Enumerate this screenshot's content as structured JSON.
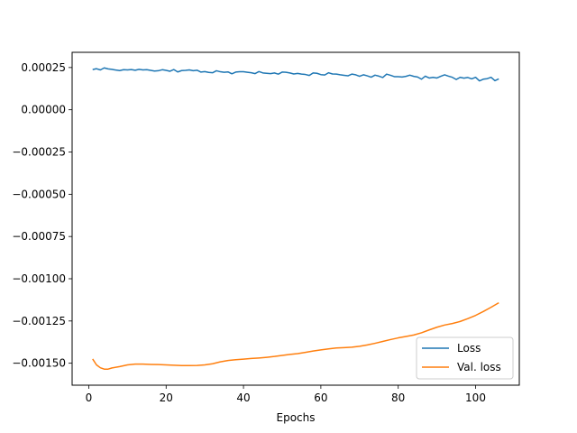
{
  "chart_data": {
    "type": "line",
    "title": "",
    "xlabel": "Epochs",
    "ylabel": "",
    "xlim": [
      -4.3,
      111.3
    ],
    "ylim": [
      -0.00163,
      0.00034
    ],
    "xticks": [
      0,
      20,
      40,
      60,
      80,
      100
    ],
    "yticks": [
      0.00025,
      0.0,
      -0.00025,
      -0.0005,
      -0.00075,
      -0.001,
      -0.00125,
      -0.0015
    ],
    "ytick_labels": [
      "0.00025",
      "0.00000",
      "−0.00025",
      "−0.00050",
      "−0.00075",
      "−0.00100",
      "−0.00125",
      "−0.00150"
    ],
    "grid": false,
    "legend": "lower-right",
    "series": [
      {
        "name": "Loss",
        "color": "#1f77b4",
        "x": [
          1,
          2,
          3,
          4,
          5,
          6,
          7,
          8,
          9,
          10,
          11,
          12,
          13,
          14,
          15,
          16,
          17,
          18,
          19,
          20,
          21,
          22,
          23,
          24,
          25,
          26,
          27,
          28,
          29,
          30,
          31,
          32,
          33,
          34,
          35,
          36,
          37,
          38,
          39,
          40,
          41,
          42,
          43,
          44,
          45,
          46,
          47,
          48,
          49,
          50,
          51,
          52,
          53,
          54,
          55,
          56,
          57,
          58,
          59,
          60,
          61,
          62,
          63,
          64,
          65,
          66,
          67,
          68,
          69,
          70,
          71,
          72,
          73,
          74,
          75,
          76,
          77,
          78,
          79,
          80,
          81,
          82,
          83,
          84,
          85,
          86,
          87,
          88,
          89,
          90,
          91,
          92,
          93,
          94,
          95,
          96,
          97,
          98,
          99,
          100,
          101,
          102,
          103,
          104,
          105,
          106
        ],
        "y": [
          0.000238,
          0.000243,
          0.000236,
          0.000248,
          0.000242,
          0.000239,
          0.000235,
          0.000232,
          0.000237,
          0.000236,
          0.000238,
          0.000234,
          0.000239,
          0.000236,
          0.000237,
          0.000233,
          0.000229,
          0.000231,
          0.000237,
          0.000233,
          0.000228,
          0.000238,
          0.000224,
          0.000232,
          0.000233,
          0.000236,
          0.000231,
          0.000234,
          0.000223,
          0.000226,
          0.000221,
          0.000219,
          0.000231,
          0.000225,
          0.000222,
          0.000224,
          0.000213,
          0.000223,
          0.000225,
          0.000225,
          0.000222,
          0.000219,
          0.000214,
          0.000226,
          0.000218,
          0.000216,
          0.000214,
          0.000218,
          0.000211,
          0.000223,
          0.000222,
          0.000218,
          0.000212,
          0.000215,
          0.000211,
          0.000209,
          0.000203,
          0.000218,
          0.000216,
          0.000208,
          0.000206,
          0.000219,
          0.000212,
          0.000211,
          0.000207,
          0.000204,
          0.000201,
          0.000211,
          0.000207,
          0.000198,
          0.000207,
          0.000201,
          0.000193,
          0.000205,
          0.000199,
          0.000191,
          0.000211,
          0.000204,
          0.000196,
          0.000196,
          0.000194,
          0.000198,
          0.000205,
          0.000198,
          0.000194,
          0.000181,
          0.000199,
          0.000188,
          0.000192,
          0.000188,
          0.000198,
          0.000207,
          0.000199,
          0.000192,
          0.000179,
          0.000192,
          0.000187,
          0.000191,
          0.000183,
          0.000192,
          0.000171,
          0.000181,
          0.000184,
          0.000192,
          0.000172,
          0.000183
        ]
      },
      {
        "name": "Val. loss",
        "color": "#ff7f0e",
        "x": [
          1,
          2,
          3,
          4,
          5,
          6,
          8,
          10,
          12,
          14,
          16,
          18,
          20,
          22,
          24,
          26,
          28,
          30,
          32,
          34,
          36,
          38,
          40,
          42,
          44,
          46,
          48,
          50,
          52,
          54,
          56,
          58,
          60,
          62,
          64,
          66,
          68,
          70,
          72,
          74,
          76,
          78,
          80,
          82,
          84,
          86,
          88,
          90,
          92,
          94,
          96,
          98,
          100,
          102,
          104,
          106
        ],
        "y": [
          -0.001475,
          -0.00151,
          -0.001527,
          -0.001535,
          -0.001535,
          -0.001528,
          -0.00152,
          -0.00151,
          -0.001505,
          -0.001505,
          -0.001507,
          -0.001508,
          -0.00151,
          -0.001512,
          -0.001514,
          -0.001514,
          -0.001513,
          -0.00151,
          -0.001503,
          -0.001492,
          -0.001484,
          -0.001479,
          -0.001476,
          -0.001472,
          -0.001469,
          -0.001465,
          -0.00146,
          -0.001454,
          -0.001448,
          -0.001443,
          -0.001436,
          -0.001428,
          -0.001421,
          -0.001415,
          -0.00141,
          -0.001408,
          -0.001405,
          -0.0014,
          -0.001392,
          -0.001382,
          -0.001371,
          -0.00136,
          -0.00135,
          -0.001342,
          -0.001333,
          -0.00132,
          -0.001303,
          -0.001287,
          -0.001274,
          -0.001265,
          -0.001253,
          -0.001236,
          -0.001217,
          -0.001194,
          -0.001169,
          -0.001142
        ]
      }
    ]
  }
}
